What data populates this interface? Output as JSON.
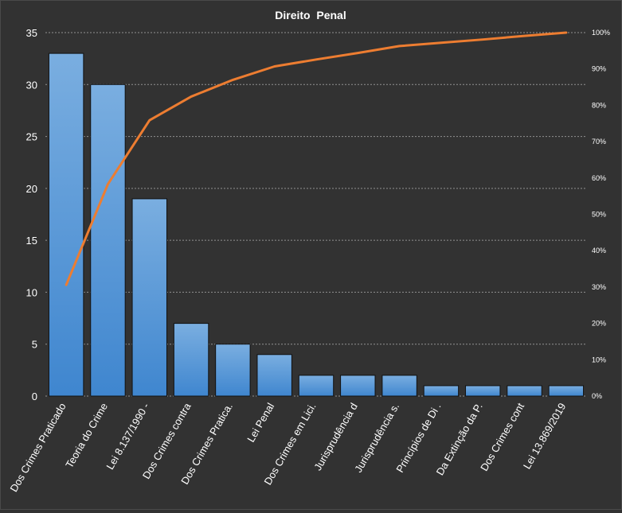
{
  "chart_data": {
    "type": "pareto",
    "title": "Direito  Penal",
    "categories": [
      "Dos Crimes Praticado",
      "Teoria do Crime",
      "Lei 8.137/1990 -",
      "Dos Crimes contra",
      "Dos Crimes Pratica.",
      "Lei Penal",
      "Dos Crimes em Lici.",
      "Jurisprudência d",
      "Jurisprudência s.",
      "Princípios de Di .",
      "Da Extinção da P.",
      "Dos Crimes cont",
      "Lei 13.869/2019"
    ],
    "values": [
      33,
      30,
      19,
      7,
      5,
      4,
      2,
      2,
      2,
      1,
      1,
      1,
      1
    ],
    "cumulative_percent": [
      30.6,
      58.3,
      75.9,
      82.4,
      87.0,
      90.7,
      92.6,
      94.4,
      96.3,
      97.2,
      98.1,
      99.1,
      100
    ],
    "y_left_ticks": [
      "0",
      "5",
      "10",
      "15",
      "20",
      "25",
      "30",
      "35"
    ],
    "y_left_lim": [
      0,
      35
    ],
    "y_right_ticks": [
      "0%",
      "10%",
      "20%",
      "30%",
      "40%",
      "50%",
      "60%",
      "70%",
      "80%",
      "90%",
      "100%"
    ],
    "y_right_lim": [
      0,
      100
    ],
    "grid": "horizontal dashed",
    "colors": {
      "background": "#323232",
      "bar_top": "#7aaee0",
      "bar_bottom": "#3f86cf",
      "line": "#ed7d31",
      "text": "#ffffff",
      "grid": "#a9a9a9"
    }
  }
}
